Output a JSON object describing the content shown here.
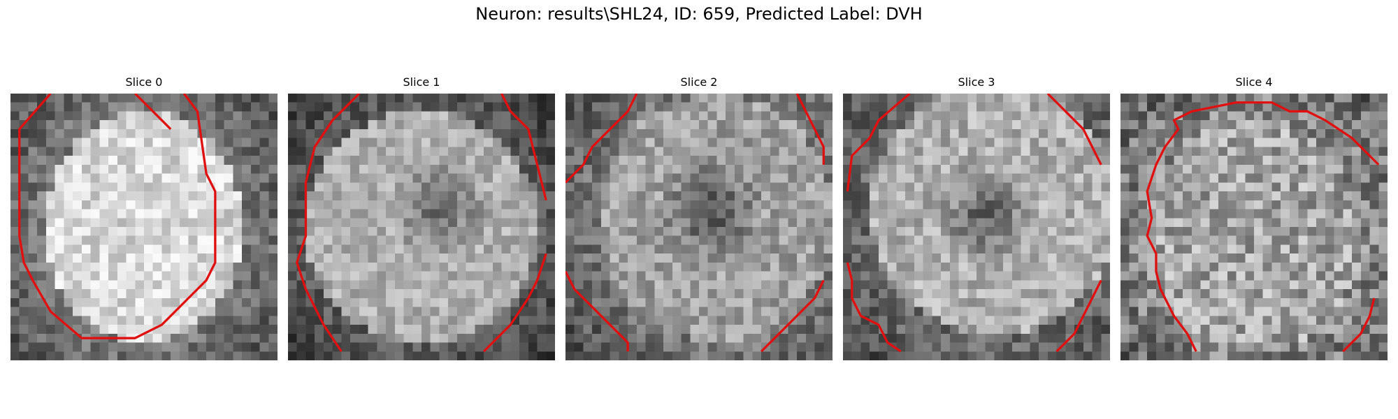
{
  "figure": {
    "title": "Neuron: results\\SHL24, ID: 659, Predicted Label: DVH",
    "contour_color": "#e01010",
    "panels": [
      {
        "title": "Slice 0",
        "image": "grayscale-neuron-patch"
      },
      {
        "title": "Slice 1",
        "image": "grayscale-neuron-patch"
      },
      {
        "title": "Slice 2",
        "image": "grayscale-neuron-patch"
      },
      {
        "title": "Slice 3",
        "image": "grayscale-neuron-patch"
      },
      {
        "title": "Slice 4",
        "image": "grayscale-neuron-patch"
      }
    ]
  }
}
